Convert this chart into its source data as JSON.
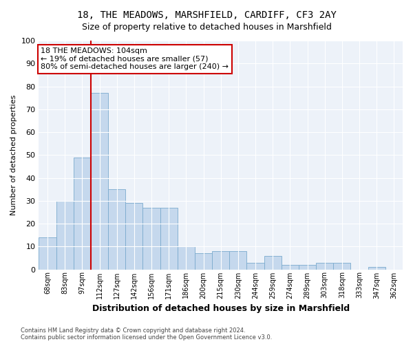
{
  "title1": "18, THE MEADOWS, MARSHFIELD, CARDIFF, CF3 2AY",
  "title2": "Size of property relative to detached houses in Marshfield",
  "xlabel": "Distribution of detached houses by size in Marshfield",
  "ylabel": "Number of detached properties",
  "categories": [
    "68sqm",
    "83sqm",
    "97sqm",
    "112sqm",
    "127sqm",
    "142sqm",
    "156sqm",
    "171sqm",
    "186sqm",
    "200sqm",
    "215sqm",
    "230sqm",
    "244sqm",
    "259sqm",
    "274sqm",
    "289sqm",
    "303sqm",
    "318sqm",
    "333sqm",
    "347sqm",
    "362sqm"
  ],
  "values": [
    14,
    30,
    49,
    77,
    35,
    29,
    27,
    27,
    10,
    7,
    8,
    8,
    3,
    6,
    2,
    2,
    3,
    3,
    0,
    1,
    0
  ],
  "bar_color": "#c5d8ed",
  "bar_edge_color": "#7aaacd",
  "vline_color": "#cc0000",
  "annotation_text": "18 THE MEADOWS: 104sqm\n← 19% of detached houses are smaller (57)\n80% of semi-detached houses are larger (240) →",
  "annotation_box_color": "#ffffff",
  "annotation_box_edge": "#cc0000",
  "ylim": [
    0,
    100
  ],
  "yticks": [
    0,
    10,
    20,
    30,
    40,
    50,
    60,
    70,
    80,
    90,
    100
  ],
  "background_color": "#edf2f9",
  "footer1": "Contains HM Land Registry data © Crown copyright and database right 2024.",
  "footer2": "Contains public sector information licensed under the Open Government Licence v3.0."
}
